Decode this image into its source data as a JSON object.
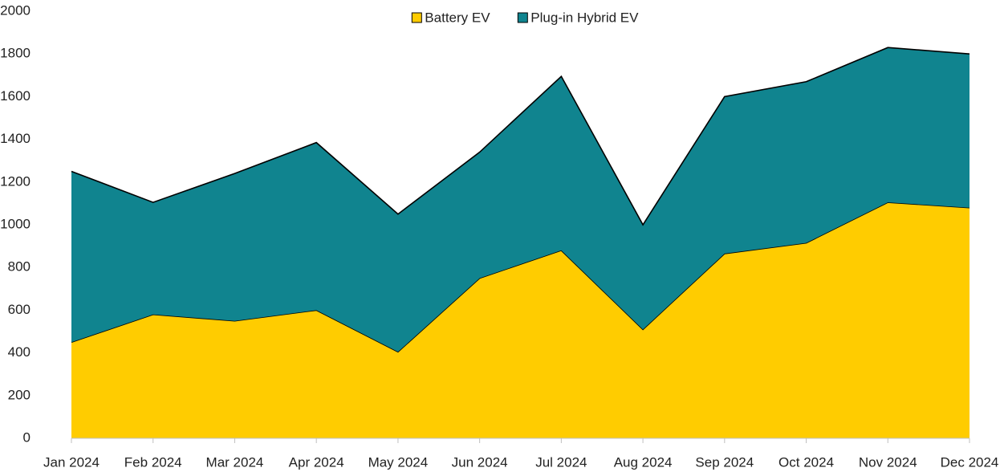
{
  "chart_data": {
    "type": "stacked_area",
    "categories": [
      "Jan 2024",
      "Feb 2024",
      "Mar 2024",
      "Apr 2024",
      "May 2024",
      "Jun 2024",
      "Jul 2024",
      "Aug 2024",
      "Sep 2024",
      "Oct 2024",
      "Nov 2024",
      "Dec 2024"
    ],
    "series": [
      {
        "name": "Battery EV",
        "color": "#ffcc00",
        "values": [
          450,
          580,
          550,
          600,
          405,
          750,
          880,
          510,
          865,
          915,
          1105,
          1080
        ]
      },
      {
        "name": "Plug-in Hybrid EV",
        "color": "#10848f",
        "values": [
          800,
          525,
          690,
          785,
          645,
          590,
          815,
          490,
          735,
          755,
          725,
          720
        ]
      }
    ],
    "ylim": [
      0,
      2000
    ],
    "yticks": [
      0,
      200,
      400,
      600,
      800,
      1000,
      1200,
      1400,
      1600,
      1800,
      2000
    ],
    "grid": false,
    "legend": "top"
  }
}
